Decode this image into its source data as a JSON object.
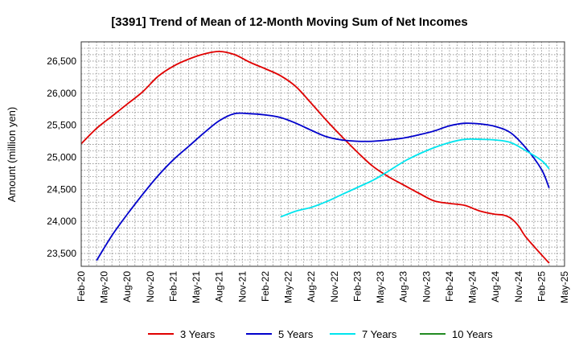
{
  "chart_data": {
    "type": "line",
    "title": "[3391]  Trend of Mean of 12-Month Moving Sum of Net Incomes",
    "ylabel": "Amount (million yen)",
    "xlabel": "",
    "ylim": [
      23300,
      26800
    ],
    "yticks": [
      23500,
      24000,
      24500,
      25000,
      25500,
      26000,
      26500
    ],
    "ytick_labels": [
      "23,500",
      "24,000",
      "24,500",
      "25,000",
      "25,500",
      "26,000",
      "26,500"
    ],
    "xticks": [
      "Feb-20",
      "May-20",
      "Aug-20",
      "Nov-20",
      "Feb-21",
      "May-21",
      "Aug-21",
      "Nov-21",
      "Feb-22",
      "May-22",
      "Aug-22",
      "Nov-22",
      "Feb-23",
      "May-23",
      "Aug-23",
      "Nov-23",
      "Feb-24",
      "May-24",
      "Aug-24",
      "Nov-24",
      "Feb-25",
      "May-25"
    ],
    "grid": true,
    "legend_position": "bottom",
    "series": [
      {
        "name": "3 Years",
        "color": "#e00000",
        "points": [
          [
            "Feb-20",
            25210
          ],
          [
            "Apr-20",
            25450
          ],
          [
            "Jun-20",
            25640
          ],
          [
            "Aug-20",
            25830
          ],
          [
            "Oct-20",
            26020
          ],
          [
            "Dec-20",
            26260
          ],
          [
            "Feb-21",
            26420
          ],
          [
            "Apr-21",
            26530
          ],
          [
            "Jun-21",
            26610
          ],
          [
            "Aug-21",
            26650
          ],
          [
            "Oct-21",
            26600
          ],
          [
            "Dec-21",
            26480
          ],
          [
            "Feb-22",
            26380
          ],
          [
            "Apr-22",
            26270
          ],
          [
            "Jun-22",
            26100
          ],
          [
            "Aug-22",
            25840
          ],
          [
            "Oct-22",
            25570
          ],
          [
            "Dec-22",
            25320
          ],
          [
            "Feb-23",
            25080
          ],
          [
            "Apr-23",
            24860
          ],
          [
            "Jun-23",
            24700
          ],
          [
            "Aug-23",
            24570
          ],
          [
            "Oct-23",
            24440
          ],
          [
            "Dec-23",
            24320
          ],
          [
            "Feb-24",
            24280
          ],
          [
            "Apr-24",
            24250
          ],
          [
            "Jun-24",
            24160
          ],
          [
            "Aug-24",
            24110
          ],
          [
            "Sep-24",
            24100
          ],
          [
            "Oct-24",
            24050
          ],
          [
            "Nov-24",
            23930
          ],
          [
            "Dec-24",
            23750
          ],
          [
            "Feb-25",
            23480
          ],
          [
            "Mar-25",
            23350
          ]
        ]
      },
      {
        "name": "5 Years",
        "color": "#0000cc",
        "points": [
          [
            "Apr-20",
            23390
          ],
          [
            "Jun-20",
            23780
          ],
          [
            "Aug-20",
            24110
          ],
          [
            "Oct-20",
            24420
          ],
          [
            "Dec-20",
            24710
          ],
          [
            "Feb-21",
            24960
          ],
          [
            "Apr-21",
            25170
          ],
          [
            "Jun-21",
            25380
          ],
          [
            "Aug-21",
            25570
          ],
          [
            "Oct-21",
            25680
          ],
          [
            "Dec-21",
            25680
          ],
          [
            "Feb-22",
            25660
          ],
          [
            "Apr-22",
            25620
          ],
          [
            "Jun-22",
            25530
          ],
          [
            "Aug-22",
            25420
          ],
          [
            "Oct-22",
            25320
          ],
          [
            "Dec-22",
            25270
          ],
          [
            "Feb-23",
            25250
          ],
          [
            "Apr-23",
            25250
          ],
          [
            "Jun-23",
            25270
          ],
          [
            "Aug-23",
            25300
          ],
          [
            "Oct-23",
            25350
          ],
          [
            "Dec-23",
            25410
          ],
          [
            "Feb-24",
            25490
          ],
          [
            "Apr-24",
            25530
          ],
          [
            "Jun-24",
            25520
          ],
          [
            "Aug-24",
            25480
          ],
          [
            "Oct-24",
            25380
          ],
          [
            "Dec-24",
            25140
          ],
          [
            "Feb-25",
            24810
          ],
          [
            "Mar-25",
            24520
          ]
        ]
      },
      {
        "name": "7 Years",
        "color": "#00e5ee",
        "points": [
          [
            "Apr-22",
            24070
          ],
          [
            "Jun-22",
            24160
          ],
          [
            "Aug-22",
            24220
          ],
          [
            "Oct-22",
            24310
          ],
          [
            "Dec-22",
            24420
          ],
          [
            "Feb-23",
            24530
          ],
          [
            "Apr-23",
            24640
          ],
          [
            "Jun-23",
            24780
          ],
          [
            "Aug-23",
            24930
          ],
          [
            "Oct-23",
            25050
          ],
          [
            "Dec-23",
            25150
          ],
          [
            "Feb-24",
            25230
          ],
          [
            "Apr-24",
            25280
          ],
          [
            "Jun-24",
            25280
          ],
          [
            "Aug-24",
            25270
          ],
          [
            "Oct-24",
            25230
          ],
          [
            "Dec-24",
            25100
          ],
          [
            "Feb-25",
            24950
          ],
          [
            "Mar-25",
            24820
          ]
        ]
      },
      {
        "name": "10 Years",
        "color": "#228b22",
        "points": []
      }
    ]
  }
}
